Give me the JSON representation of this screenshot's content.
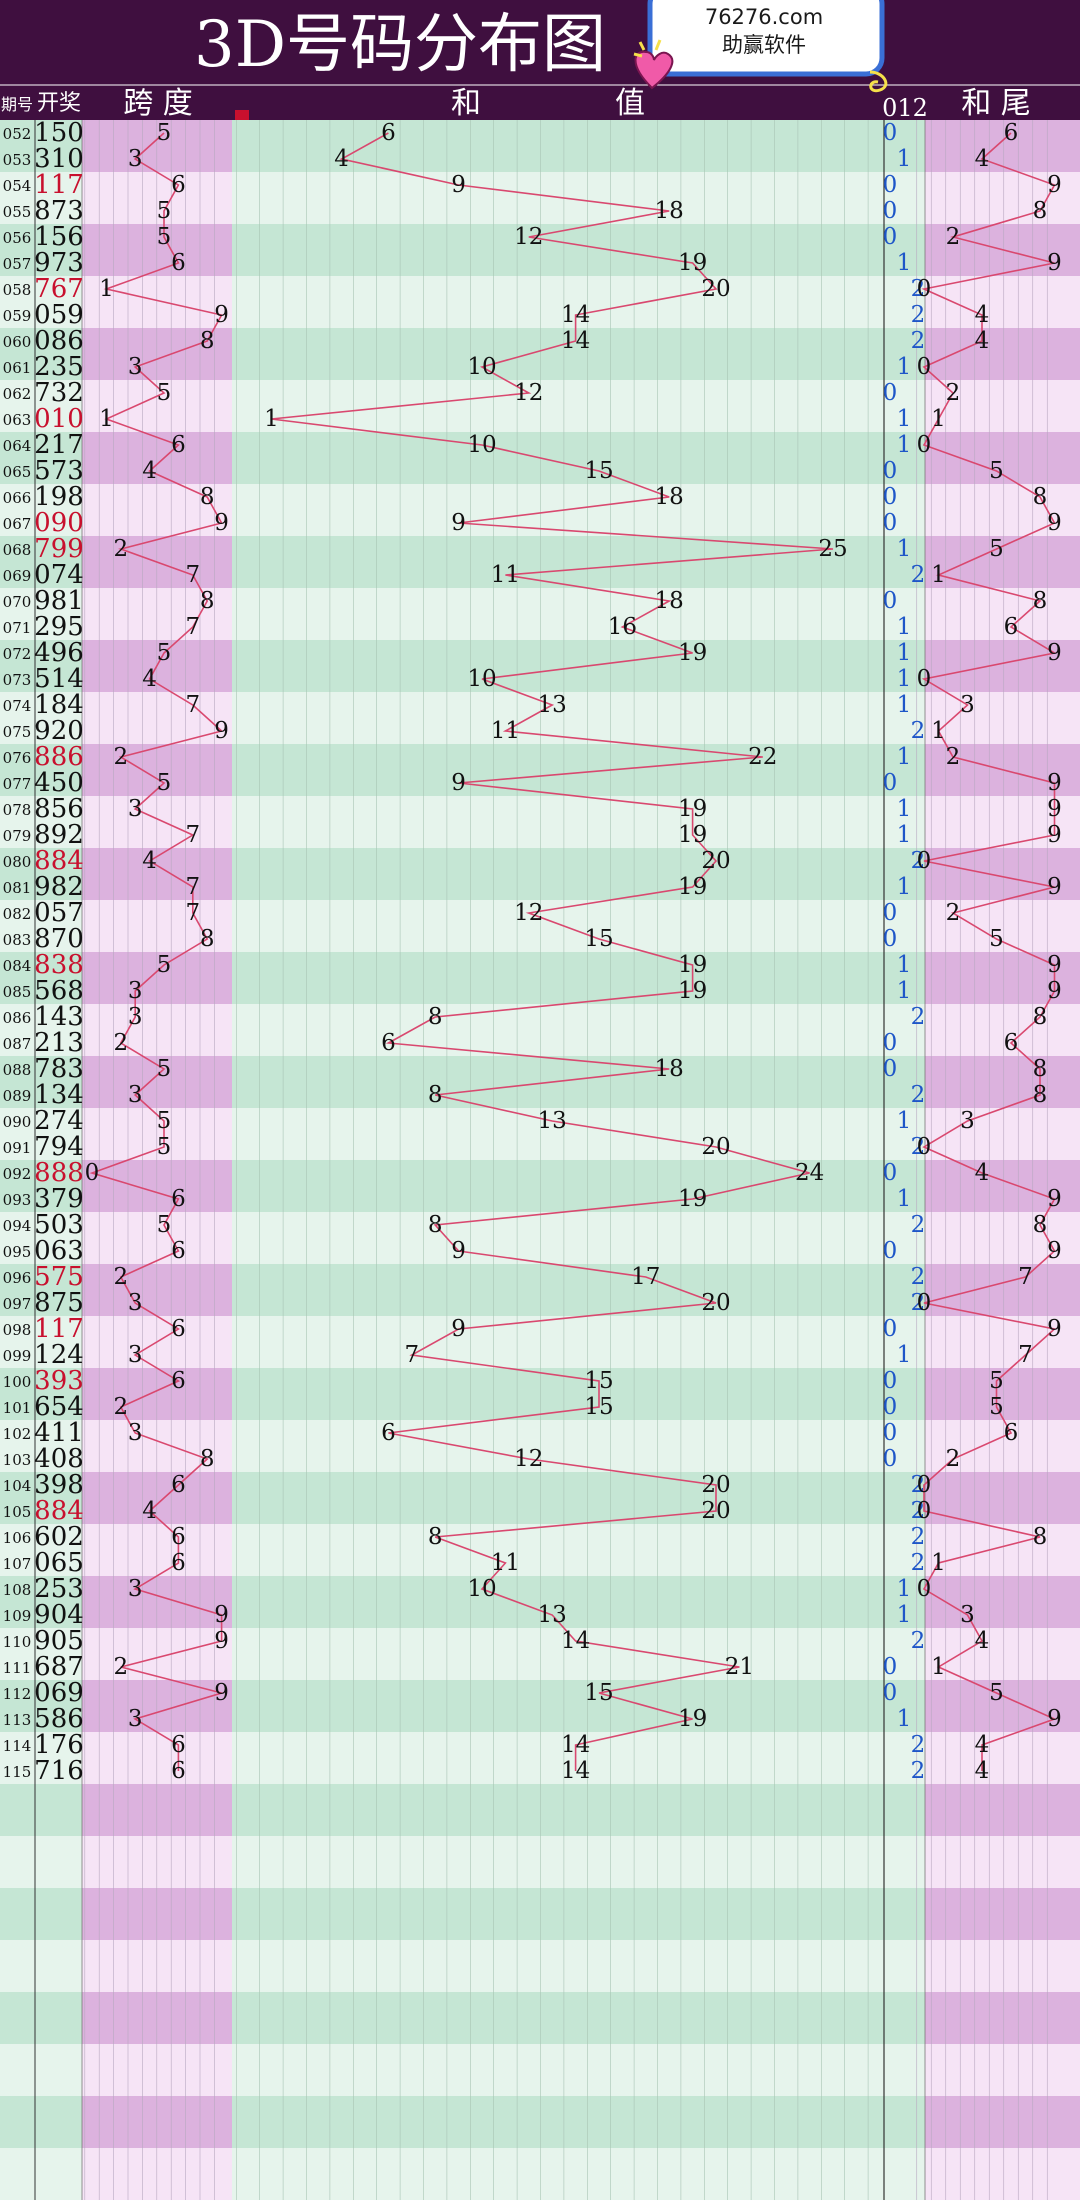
{
  "header": {
    "title": "3D号码分布图",
    "badge_url": "76276.com",
    "badge_brand": "助赢软件",
    "col_issue": "期号",
    "col_draw": "开奖",
    "col_span": "跨 度",
    "col_sum_he": "和",
    "col_sum_zhi": "值",
    "col_mod": "012",
    "col_tail": "和 尾"
  },
  "colors": {
    "header_bg": "#3f0f3f",
    "line": "#d9486f",
    "red_number": "#c8102e",
    "mod_blue": "#1e56c8",
    "pink_band": "#dcb2de",
    "pink_light": "#f6e4f6",
    "green_band": "#c5e6d4",
    "green_light": "#e6f4ec"
  },
  "chart_data": {
    "type": "table",
    "title": "3D号码分布图",
    "columns": [
      "期号",
      "开奖",
      "跨度",
      "和值",
      "012",
      "和尾"
    ],
    "rows": [
      {
        "issue": "052",
        "draw": "150",
        "red": false,
        "span": 5,
        "sum": 6,
        "mod": 0,
        "tail": 6
      },
      {
        "issue": "053",
        "draw": "310",
        "red": false,
        "span": 3,
        "sum": 4,
        "mod": 1,
        "tail": 4
      },
      {
        "issue": "054",
        "draw": "117",
        "red": true,
        "span": 6,
        "sum": 9,
        "mod": 0,
        "tail": 9
      },
      {
        "issue": "055",
        "draw": "873",
        "red": false,
        "span": 5,
        "sum": 18,
        "mod": 0,
        "tail": 8
      },
      {
        "issue": "056",
        "draw": "156",
        "red": false,
        "span": 5,
        "sum": 12,
        "mod": 0,
        "tail": 2
      },
      {
        "issue": "057",
        "draw": "973",
        "red": false,
        "span": 6,
        "sum": 19,
        "mod": 1,
        "tail": 9
      },
      {
        "issue": "058",
        "draw": "767",
        "red": true,
        "span": 1,
        "sum": 20,
        "mod": 2,
        "tail": 0
      },
      {
        "issue": "059",
        "draw": "059",
        "red": false,
        "span": 9,
        "sum": 14,
        "mod": 2,
        "tail": 4
      },
      {
        "issue": "060",
        "draw": "086",
        "red": false,
        "span": 8,
        "sum": 14,
        "mod": 2,
        "tail": 4
      },
      {
        "issue": "061",
        "draw": "235",
        "red": false,
        "span": 3,
        "sum": 10,
        "mod": 1,
        "tail": 0
      },
      {
        "issue": "062",
        "draw": "732",
        "red": false,
        "span": 5,
        "sum": 12,
        "mod": 0,
        "tail": 2
      },
      {
        "issue": "063",
        "draw": "010",
        "red": true,
        "span": 1,
        "sum": 1,
        "mod": 1,
        "tail": 1
      },
      {
        "issue": "064",
        "draw": "217",
        "red": false,
        "span": 6,
        "sum": 10,
        "mod": 1,
        "tail": 0
      },
      {
        "issue": "065",
        "draw": "573",
        "red": false,
        "span": 4,
        "sum": 15,
        "mod": 0,
        "tail": 5
      },
      {
        "issue": "066",
        "draw": "198",
        "red": false,
        "span": 8,
        "sum": 18,
        "mod": 0,
        "tail": 8
      },
      {
        "issue": "067",
        "draw": "090",
        "red": true,
        "span": 9,
        "sum": 9,
        "mod": 0,
        "tail": 9
      },
      {
        "issue": "068",
        "draw": "799",
        "red": true,
        "span": 2,
        "sum": 25,
        "mod": 1,
        "tail": 5
      },
      {
        "issue": "069",
        "draw": "074",
        "red": false,
        "span": 7,
        "sum": 11,
        "mod": 2,
        "tail": 1
      },
      {
        "issue": "070",
        "draw": "981",
        "red": false,
        "span": 8,
        "sum": 18,
        "mod": 0,
        "tail": 8
      },
      {
        "issue": "071",
        "draw": "295",
        "red": false,
        "span": 7,
        "sum": 16,
        "mod": 1,
        "tail": 6
      },
      {
        "issue": "072",
        "draw": "496",
        "red": false,
        "span": 5,
        "sum": 19,
        "mod": 1,
        "tail": 9
      },
      {
        "issue": "073",
        "draw": "514",
        "red": false,
        "span": 4,
        "sum": 10,
        "mod": 1,
        "tail": 0
      },
      {
        "issue": "074",
        "draw": "184",
        "red": false,
        "span": 7,
        "sum": 13,
        "mod": 1,
        "tail": 3
      },
      {
        "issue": "075",
        "draw": "920",
        "red": false,
        "span": 9,
        "sum": 11,
        "mod": 2,
        "tail": 1
      },
      {
        "issue": "076",
        "draw": "886",
        "red": true,
        "span": 2,
        "sum": 22,
        "mod": 1,
        "tail": 2
      },
      {
        "issue": "077",
        "draw": "450",
        "red": false,
        "span": 5,
        "sum": 9,
        "mod": 0,
        "tail": 9
      },
      {
        "issue": "078",
        "draw": "856",
        "red": false,
        "span": 3,
        "sum": 19,
        "mod": 1,
        "tail": 9
      },
      {
        "issue": "079",
        "draw": "892",
        "red": false,
        "span": 7,
        "sum": 19,
        "mod": 1,
        "tail": 9
      },
      {
        "issue": "080",
        "draw": "884",
        "red": true,
        "span": 4,
        "sum": 20,
        "mod": 2,
        "tail": 0
      },
      {
        "issue": "081",
        "draw": "982",
        "red": false,
        "span": 7,
        "sum": 19,
        "mod": 1,
        "tail": 9
      },
      {
        "issue": "082",
        "draw": "057",
        "red": false,
        "span": 7,
        "sum": 12,
        "mod": 0,
        "tail": 2
      },
      {
        "issue": "083",
        "draw": "870",
        "red": false,
        "span": 8,
        "sum": 15,
        "mod": 0,
        "tail": 5
      },
      {
        "issue": "084",
        "draw": "838",
        "red": true,
        "span": 5,
        "sum": 19,
        "mod": 1,
        "tail": 9
      },
      {
        "issue": "085",
        "draw": "568",
        "red": false,
        "span": 3,
        "sum": 19,
        "mod": 1,
        "tail": 9
      },
      {
        "issue": "086",
        "draw": "143",
        "red": false,
        "span": 3,
        "sum": 8,
        "mod": 2,
        "tail": 8
      },
      {
        "issue": "087",
        "draw": "213",
        "red": false,
        "span": 2,
        "sum": 6,
        "mod": 0,
        "tail": 6
      },
      {
        "issue": "088",
        "draw": "783",
        "red": false,
        "span": 5,
        "sum": 18,
        "mod": 0,
        "tail": 8
      },
      {
        "issue": "089",
        "draw": "134",
        "red": false,
        "span": 3,
        "sum": 8,
        "mod": 2,
        "tail": 8
      },
      {
        "issue": "090",
        "draw": "274",
        "red": false,
        "span": 5,
        "sum": 13,
        "mod": 1,
        "tail": 3
      },
      {
        "issue": "091",
        "draw": "794",
        "red": false,
        "span": 5,
        "sum": 20,
        "mod": 2,
        "tail": 0
      },
      {
        "issue": "092",
        "draw": "888",
        "red": true,
        "span": 0,
        "sum": 24,
        "mod": 0,
        "tail": 4
      },
      {
        "issue": "093",
        "draw": "379",
        "red": false,
        "span": 6,
        "sum": 19,
        "mod": 1,
        "tail": 9
      },
      {
        "issue": "094",
        "draw": "503",
        "red": false,
        "span": 5,
        "sum": 8,
        "mod": 2,
        "tail": 8
      },
      {
        "issue": "095",
        "draw": "063",
        "red": false,
        "span": 6,
        "sum": 9,
        "mod": 0,
        "tail": 9
      },
      {
        "issue": "096",
        "draw": "575",
        "red": true,
        "span": 2,
        "sum": 17,
        "mod": 2,
        "tail": 7
      },
      {
        "issue": "097",
        "draw": "875",
        "red": false,
        "span": 3,
        "sum": 20,
        "mod": 2,
        "tail": 0
      },
      {
        "issue": "098",
        "draw": "117",
        "red": true,
        "span": 6,
        "sum": 9,
        "mod": 0,
        "tail": 9
      },
      {
        "issue": "099",
        "draw": "124",
        "red": false,
        "span": 3,
        "sum": 7,
        "mod": 1,
        "tail": 7
      },
      {
        "issue": "100",
        "draw": "393",
        "red": true,
        "span": 6,
        "sum": 15,
        "mod": 0,
        "tail": 5
      },
      {
        "issue": "101",
        "draw": "654",
        "red": false,
        "span": 2,
        "sum": 15,
        "mod": 0,
        "tail": 5
      },
      {
        "issue": "102",
        "draw": "411",
        "red": false,
        "span": 3,
        "sum": 6,
        "mod": 0,
        "tail": 6
      },
      {
        "issue": "103",
        "draw": "408",
        "red": false,
        "span": 8,
        "sum": 12,
        "mod": 0,
        "tail": 2
      },
      {
        "issue": "104",
        "draw": "398",
        "red": false,
        "span": 6,
        "sum": 20,
        "mod": 2,
        "tail": 0
      },
      {
        "issue": "105",
        "draw": "884",
        "red": true,
        "span": 4,
        "sum": 20,
        "mod": 2,
        "tail": 0
      },
      {
        "issue": "106",
        "draw": "602",
        "red": false,
        "span": 6,
        "sum": 8,
        "mod": 2,
        "tail": 8
      },
      {
        "issue": "107",
        "draw": "065",
        "red": false,
        "span": 6,
        "sum": 11,
        "mod": 2,
        "tail": 1
      },
      {
        "issue": "108",
        "draw": "253",
        "red": false,
        "span": 3,
        "sum": 10,
        "mod": 1,
        "tail": 0
      },
      {
        "issue": "109",
        "draw": "904",
        "red": false,
        "span": 9,
        "sum": 13,
        "mod": 1,
        "tail": 3
      },
      {
        "issue": "110",
        "draw": "905",
        "red": false,
        "span": 9,
        "sum": 14,
        "mod": 2,
        "tail": 4
      },
      {
        "issue": "111",
        "draw": "687",
        "red": false,
        "span": 2,
        "sum": 21,
        "mod": 0,
        "tail": 1
      },
      {
        "issue": "112",
        "draw": "069",
        "red": false,
        "span": 9,
        "sum": 15,
        "mod": 0,
        "tail": 5
      },
      {
        "issue": "113",
        "draw": "586",
        "red": false,
        "span": 3,
        "sum": 19,
        "mod": 1,
        "tail": 9
      },
      {
        "issue": "114",
        "draw": "176",
        "red": false,
        "span": 6,
        "sum": 14,
        "mod": 2,
        "tail": 4
      },
      {
        "issue": "115",
        "draw": "716",
        "red": false,
        "span": 6,
        "sum": 14,
        "mod": 2,
        "tail": 4
      }
    ]
  }
}
